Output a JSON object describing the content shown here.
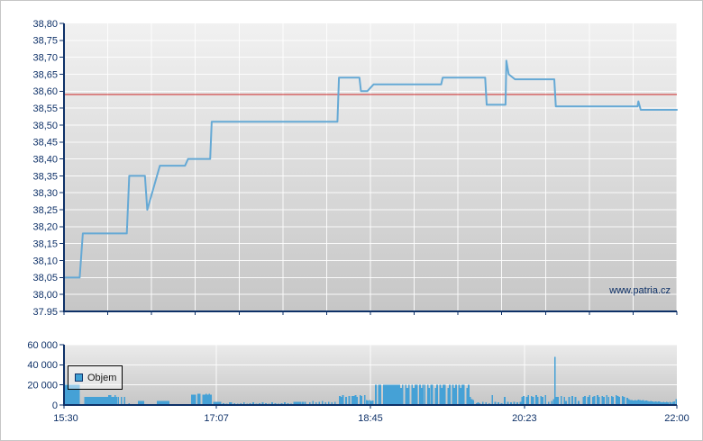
{
  "watermark": "www.patria.cz",
  "legend": {
    "label": "Objem"
  },
  "colors": {
    "accent_line": "#65a9d5",
    "reference_red": "#cc2222",
    "bar_fill": "#45a1d6",
    "axis_navy": "#0e3168",
    "label_navy": "#0e3168",
    "grid_white": "#ffffff",
    "plot_top": "#f1f1f1",
    "plot_bottom": "#c6c6c6",
    "vol_plot_top": "#ebebeb",
    "legend_text": "#1a1a1a"
  },
  "chart_data": [
    {
      "type": "line",
      "name": "price",
      "x_axis": {
        "unit": "minutes since 15:30",
        "range": [
          0,
          390
        ],
        "ticks": [
          {
            "t": 0,
            "label": "15:30"
          },
          {
            "t": 97,
            "label": "17:07"
          },
          {
            "t": 195,
            "label": "18:45"
          },
          {
            "t": 293,
            "label": "20:23"
          },
          {
            "t": 390,
            "label": "22:00"
          }
        ],
        "minor_divisions": 14
      },
      "y_axis": {
        "range": [
          37.95,
          38.8
        ],
        "step": 0.05,
        "labels_top_to_bottom": [
          "38,80",
          "38,75",
          "38,70",
          "38,65",
          "38,60",
          "38,55",
          "38,50",
          "38,45",
          "38,40",
          "38,35",
          "38,30",
          "38,25",
          "38,20",
          "38,15",
          "38,10",
          "38,05",
          "38,00",
          "37.95"
        ]
      },
      "reference_line": {
        "value": 38.59
      },
      "points": [
        [
          0,
          38.05
        ],
        [
          10,
          38.05
        ],
        [
          12,
          38.18
        ],
        [
          40,
          38.18
        ],
        [
          41.5,
          38.35
        ],
        [
          51.5,
          38.35
        ],
        [
          53,
          38.25
        ],
        [
          61,
          38.38
        ],
        [
          77,
          38.38
        ],
        [
          79,
          38.4
        ],
        [
          93,
          38.4
        ],
        [
          94,
          38.51
        ],
        [
          174,
          38.51
        ],
        [
          175,
          38.64
        ],
        [
          188,
          38.64
        ],
        [
          189,
          38.6
        ],
        [
          193,
          38.6
        ],
        [
          197,
          38.62
        ],
        [
          240,
          38.62
        ],
        [
          241,
          38.64
        ],
        [
          268,
          38.64
        ],
        [
          269,
          38.56
        ],
        [
          281,
          38.56
        ],
        [
          281.5,
          38.69
        ],
        [
          283,
          38.65
        ],
        [
          287,
          38.635
        ],
        [
          312,
          38.635
        ],
        [
          313,
          38.555
        ],
        [
          365,
          38.555
        ],
        [
          365.5,
          38.57
        ],
        [
          367,
          38.545
        ],
        [
          390,
          38.545
        ]
      ]
    },
    {
      "type": "bar",
      "name": "Objem",
      "y_axis": {
        "range": [
          0,
          60000
        ],
        "ticks": [
          {
            "v": 0,
            "label": "0"
          },
          {
            "v": 20000,
            "label": "20 000"
          },
          {
            "v": 40000,
            "label": "40 000"
          },
          {
            "v": 60000,
            "label": "60 000"
          }
        ]
      },
      "x_gridlines_t": [
        97,
        195,
        293
      ],
      "bars": [
        [
          0,
          20000
        ],
        [
          1,
          20000
        ],
        [
          2,
          20000
        ],
        [
          3,
          20000
        ],
        [
          4,
          20000
        ],
        [
          5,
          20000
        ],
        [
          6,
          20000
        ],
        [
          7,
          20000
        ],
        [
          8,
          20000
        ],
        [
          9,
          20000
        ],
        [
          13,
          8000
        ],
        [
          14,
          8000
        ],
        [
          15,
          8000
        ],
        [
          16,
          8000
        ],
        [
          17,
          8000
        ],
        [
          18,
          8000
        ],
        [
          19,
          8000
        ],
        [
          20,
          8000
        ],
        [
          21,
          8000
        ],
        [
          22,
          8000
        ],
        [
          23,
          8000
        ],
        [
          24,
          8000
        ],
        [
          25,
          8000
        ],
        [
          26,
          8000
        ],
        [
          27,
          8000
        ],
        [
          28,
          9800
        ],
        [
          29,
          9800
        ],
        [
          30,
          8000
        ],
        [
          31,
          8000
        ],
        [
          32,
          9800
        ],
        [
          33,
          8000
        ],
        [
          34,
          8000
        ],
        [
          36,
          8000
        ],
        [
          38,
          8000
        ],
        [
          41,
          2000
        ],
        [
          47,
          4000
        ],
        [
          48,
          4000
        ],
        [
          49,
          4000
        ],
        [
          50,
          4000
        ],
        [
          59,
          4000
        ],
        [
          60,
          4000
        ],
        [
          61,
          4000
        ],
        [
          62,
          4000
        ],
        [
          63,
          4000
        ],
        [
          64,
          4000
        ],
        [
          65,
          4000
        ],
        [
          66,
          4000
        ],
        [
          81,
          10500
        ],
        [
          82,
          10500
        ],
        [
          83,
          10500
        ],
        [
          85,
          11000
        ],
        [
          86,
          11000
        ],
        [
          88,
          10500
        ],
        [
          89,
          10500
        ],
        [
          90,
          11000
        ],
        [
          91,
          10500
        ],
        [
          92,
          11000
        ],
        [
          93,
          10500
        ],
        [
          95,
          3000
        ],
        [
          96,
          3000
        ],
        [
          97,
          3000
        ],
        [
          98,
          3000
        ],
        [
          99,
          3000
        ],
        [
          101,
          2000
        ],
        [
          103,
          1500
        ],
        [
          105,
          2500
        ],
        [
          106,
          2500
        ],
        [
          108,
          2000
        ],
        [
          110,
          1500
        ],
        [
          112,
          2000
        ],
        [
          114,
          2500
        ],
        [
          116,
          1500
        ],
        [
          118,
          2000
        ],
        [
          120,
          2500
        ],
        [
          122,
          1500
        ],
        [
          124,
          2000
        ],
        [
          126,
          2500
        ],
        [
          128,
          2000
        ],
        [
          130,
          1500
        ],
        [
          132,
          2500
        ],
        [
          134,
          2000
        ],
        [
          136,
          1500
        ],
        [
          138,
          2000
        ],
        [
          140,
          2500
        ],
        [
          142,
          2000
        ],
        [
          144,
          1500
        ],
        [
          146,
          3000
        ],
        [
          147,
          3000
        ],
        [
          148,
          3000
        ],
        [
          149,
          3000
        ],
        [
          150,
          3000
        ],
        [
          151,
          3000
        ],
        [
          152,
          3000
        ],
        [
          153,
          3000
        ],
        [
          156,
          2500
        ],
        [
          158,
          4000
        ],
        [
          160,
          2500
        ],
        [
          162,
          3000
        ],
        [
          164,
          4000
        ],
        [
          166,
          2500
        ],
        [
          168,
          3000
        ],
        [
          170,
          2500
        ],
        [
          172,
          3000
        ],
        [
          175,
          9000
        ],
        [
          176,
          8000
        ],
        [
          177,
          10000
        ],
        [
          179,
          8000
        ],
        [
          181,
          9000
        ],
        [
          183,
          9000
        ],
        [
          184,
          9000
        ],
        [
          185,
          10000
        ],
        [
          186,
          8000
        ],
        [
          188,
          10000
        ],
        [
          189,
          9000
        ],
        [
          191,
          10000
        ],
        [
          192,
          5000
        ],
        [
          193,
          4500
        ],
        [
          194,
          5000
        ],
        [
          195,
          4000
        ],
        [
          196,
          4500
        ],
        [
          198,
          20000
        ],
        [
          200,
          20000
        ],
        [
          201,
          20000
        ],
        [
          203,
          20000
        ],
        [
          204,
          20000
        ],
        [
          205,
          20000
        ],
        [
          206,
          20000
        ],
        [
          207,
          20000
        ],
        [
          208,
          20000
        ],
        [
          209,
          20000
        ],
        [
          210,
          20000
        ],
        [
          211,
          20000
        ],
        [
          212,
          20000
        ],
        [
          213,
          20000
        ],
        [
          214,
          17000
        ],
        [
          215,
          20000
        ],
        [
          217,
          20000
        ],
        [
          218,
          17000
        ],
        [
          219,
          20000
        ],
        [
          221,
          20000
        ],
        [
          222,
          17000
        ],
        [
          223,
          20000
        ],
        [
          224,
          20000
        ],
        [
          226,
          20000
        ],
        [
          227,
          17000
        ],
        [
          228,
          20000
        ],
        [
          229,
          20000
        ],
        [
          231,
          20000
        ],
        [
          232,
          17000
        ],
        [
          233,
          20000
        ],
        [
          234,
          20000
        ],
        [
          236,
          17000
        ],
        [
          237,
          20000
        ],
        [
          239,
          20000
        ],
        [
          240,
          17000
        ],
        [
          241,
          20000
        ],
        [
          242,
          20000
        ],
        [
          244,
          17000
        ],
        [
          245,
          20000
        ],
        [
          247,
          20000
        ],
        [
          248,
          17000
        ],
        [
          249,
          20000
        ],
        [
          251,
          20000
        ],
        [
          252,
          17000
        ],
        [
          253,
          20000
        ],
        [
          254,
          20000
        ],
        [
          256,
          17000
        ],
        [
          257,
          20000
        ],
        [
          258,
          8000
        ],
        [
          259,
          6000
        ],
        [
          260,
          5000
        ],
        [
          262,
          2000
        ],
        [
          263,
          2500
        ],
        [
          264,
          2000
        ],
        [
          266,
          3000
        ],
        [
          268,
          2500
        ],
        [
          270,
          2000
        ],
        [
          272,
          10000
        ],
        [
          274,
          3000
        ],
        [
          276,
          2500
        ],
        [
          278,
          2000
        ],
        [
          280,
          8000
        ],
        [
          282,
          3000
        ],
        [
          284,
          2500
        ],
        [
          286,
          3000
        ],
        [
          288,
          2500
        ],
        [
          290,
          3000
        ],
        [
          291,
          8000
        ],
        [
          292,
          9000
        ],
        [
          294,
          8000
        ],
        [
          295,
          10000
        ],
        [
          297,
          9000
        ],
        [
          298,
          8000
        ],
        [
          300,
          10000
        ],
        [
          301,
          8000
        ],
        [
          303,
          9000
        ],
        [
          304,
          8000
        ],
        [
          306,
          10000
        ],
        [
          308,
          3000
        ],
        [
          310,
          4000
        ],
        [
          311,
          6000
        ],
        [
          312,
          48000
        ],
        [
          313,
          8000
        ],
        [
          314,
          8000
        ],
        [
          316,
          9000
        ],
        [
          318,
          8000
        ],
        [
          319,
          4000
        ],
        [
          321,
          8000
        ],
        [
          323,
          9000
        ],
        [
          325,
          8000
        ],
        [
          327,
          4000
        ],
        [
          330,
          8000
        ],
        [
          331,
          9000
        ],
        [
          333,
          8000
        ],
        [
          334,
          10000
        ],
        [
          336,
          8000
        ],
        [
          337,
          9000
        ],
        [
          339,
          10000
        ],
        [
          340,
          8000
        ],
        [
          342,
          9000
        ],
        [
          343,
          8000
        ],
        [
          345,
          10000
        ],
        [
          346,
          8000
        ],
        [
          348,
          9000
        ],
        [
          349,
          8000
        ],
        [
          351,
          10000
        ],
        [
          352,
          9000
        ],
        [
          353,
          8000
        ],
        [
          355,
          9000
        ],
        [
          356,
          8000
        ],
        [
          358,
          7000
        ],
        [
          359,
          6000
        ],
        [
          360,
          5000
        ],
        [
          361,
          5000
        ],
        [
          362,
          4500
        ],
        [
          363,
          5000
        ],
        [
          364,
          4500
        ],
        [
          365,
          5500
        ],
        [
          366,
          5000
        ],
        [
          367,
          4500
        ],
        [
          368,
          5000
        ],
        [
          369,
          4000
        ],
        [
          370,
          4500
        ],
        [
          371,
          4000
        ],
        [
          372,
          3500
        ],
        [
          373,
          4000
        ],
        [
          374,
          3500
        ],
        [
          375,
          3000
        ],
        [
          376,
          3500
        ],
        [
          377,
          3000
        ],
        [
          378,
          3500
        ],
        [
          379,
          3000
        ],
        [
          380,
          2500
        ],
        [
          381,
          3000
        ],
        [
          382,
          2500
        ],
        [
          383,
          3000
        ],
        [
          384,
          2500
        ],
        [
          385,
          3000
        ],
        [
          386,
          2500
        ],
        [
          387,
          3000
        ],
        [
          388,
          3500
        ],
        [
          389,
          6000
        ]
      ]
    }
  ]
}
